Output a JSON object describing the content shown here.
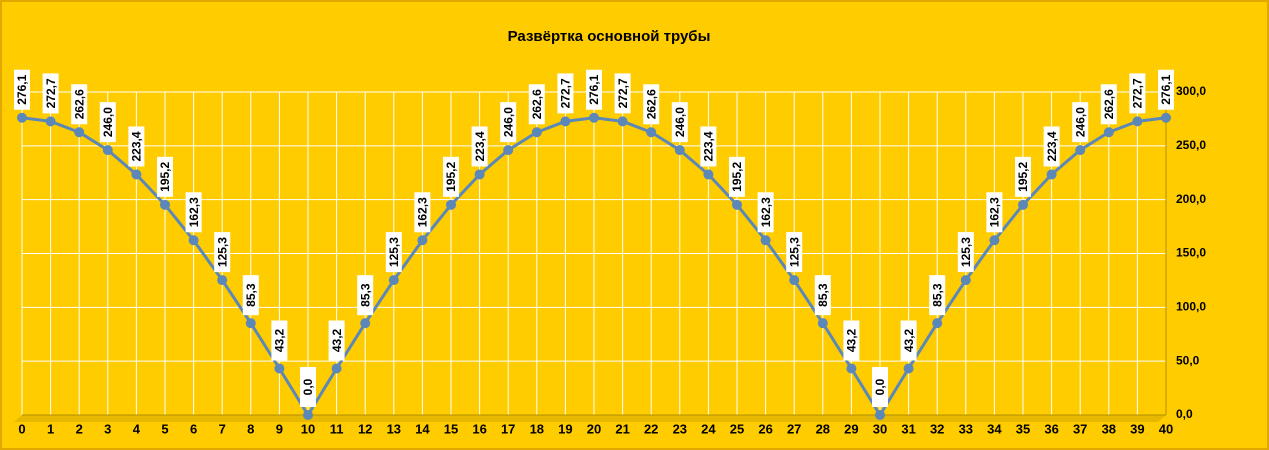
{
  "chart_data": {
    "type": "line",
    "title": "Развёртка основной трубы",
    "x": [
      0,
      1,
      2,
      3,
      4,
      5,
      6,
      7,
      8,
      9,
      10,
      11,
      12,
      13,
      14,
      15,
      16,
      17,
      18,
      19,
      20,
      21,
      22,
      23,
      24,
      25,
      26,
      27,
      28,
      29,
      30,
      31,
      32,
      33,
      34,
      35,
      36,
      37,
      38,
      39,
      40
    ],
    "xlim": [
      0,
      40
    ],
    "xticks": [
      0,
      1,
      2,
      3,
      4,
      5,
      6,
      7,
      8,
      9,
      10,
      11,
      12,
      13,
      14,
      15,
      16,
      17,
      18,
      19,
      20,
      21,
      22,
      23,
      24,
      25,
      26,
      27,
      28,
      29,
      30,
      31,
      32,
      33,
      34,
      35,
      36,
      37,
      38,
      39,
      40
    ],
    "series": [
      {
        "color": "#5b87b9",
        "values": [
          276.1,
          272.7,
          262.6,
          246,
          223.4,
          195.2,
          162.3,
          125.3,
          85.3,
          43.2,
          0,
          43.2,
          85.3,
          125.3,
          162.3,
          195.2,
          223.4,
          246,
          262.6,
          272.7,
          276.1,
          272.7,
          262.6,
          246,
          223.4,
          195.2,
          162.3,
          125.3,
          85.3,
          43.2,
          0,
          43.2,
          85.3,
          125.3,
          162.3,
          195.2,
          223.4,
          246,
          262.6,
          272.7,
          276.1
        ],
        "value_labels": [
          "276,1",
          "272,7",
          "262,6",
          "246,0",
          "223,4",
          "195,2",
          "162,3",
          "125,3",
          "85,3",
          "43,2",
          "0,0",
          "43,2",
          "85,3",
          "125,3",
          "162,3",
          "195,2",
          "223,4",
          "246,0",
          "262,6",
          "272,7",
          "276,1",
          "272,7",
          "262,6",
          "246,0",
          "223,4",
          "195,2",
          "162,3",
          "125,3",
          "85,3",
          "43,2",
          "0,0",
          "43,2",
          "85,3",
          "125,3",
          "162,3",
          "195,2",
          "223,4",
          "246,0",
          "262,6",
          "272,7",
          "276,1"
        ]
      }
    ],
    "ylim": [
      0,
      300
    ],
    "yticks": [
      {
        "value": 0,
        "label": "0,0"
      },
      {
        "value": 50,
        "label": "50,0"
      },
      {
        "value": 100,
        "label": "100,0"
      },
      {
        "value": 150,
        "label": "150,0"
      },
      {
        "value": 200,
        "label": "200,0"
      },
      {
        "value": 250,
        "label": "250,0"
      },
      {
        "value": 300,
        "label": "300,0"
      }
    ],
    "y_axis_side": "right",
    "grid": true
  }
}
